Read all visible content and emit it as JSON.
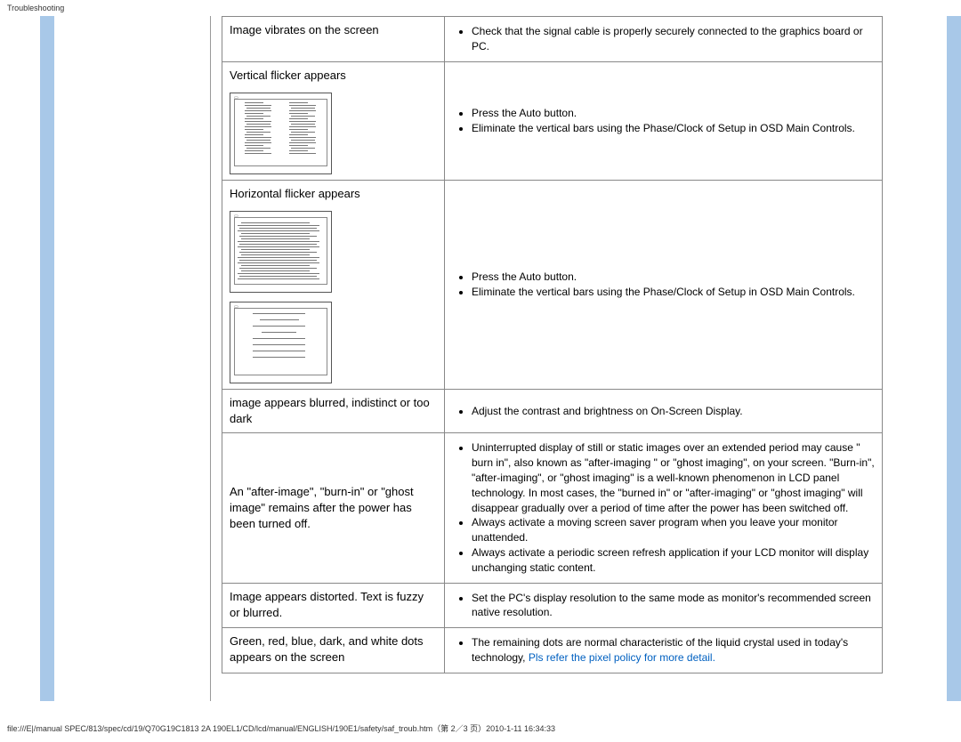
{
  "header": {
    "title": "Troubleshooting"
  },
  "rows": [
    {
      "problem": "Image vibrates on the screen",
      "solutions": [
        "Check that the signal cable is properly securely connected to the graphics board or PC."
      ],
      "diagram": null
    },
    {
      "problem": "Vertical flicker appears",
      "solutions": [
        "Press the Auto button.",
        "Eliminate the vertical bars using the Phase/Clock of Setup in OSD Main Controls."
      ],
      "diagram": "vertical"
    },
    {
      "problem": "Horizontal flicker appears",
      "solutions": [
        "Press the Auto button.",
        "Eliminate the vertical bars using the Phase/Clock of Setup in OSD Main Controls."
      ],
      "diagram": "horizontal"
    },
    {
      "problem": "image appears blurred, indistinct or too dark",
      "solutions": [
        "Adjust the contrast and brightness on On-Screen Display."
      ],
      "diagram": null
    },
    {
      "problem": "An \"after-image\", \"burn-in\" or \"ghost image\" remains after the power has been turned off.",
      "solutions": [
        "Uninterrupted display of still or static images over an extended period may cause \" burn in\", also known as \"after-imaging \" or \"ghost imaging\", on your screen. \"Burn-in\", \"after-imaging\", or \"ghost imaging\" is a well-known phenomenon in LCD panel technology. In most cases, the \"burned in\" or \"after-imaging\" or \"ghost imaging\" will disappear gradually over a period of time after the power has been switched off.",
        "Always activate a moving screen saver program when you leave your monitor unattended.",
        "Always activate a periodic screen refresh application if your LCD monitor will display unchanging static content."
      ],
      "diagram": null
    },
    {
      "problem": "Image appears distorted. Text   is fuzzy or blurred.",
      "solutions": [
        "Set the PC's display resolution to the same mode as monitor's recommended screen native resolution."
      ],
      "diagram": null
    },
    {
      "problem": "Green, red, blue, dark, and white dots appears on the screen",
      "solutions": [],
      "special_solution_prefix": "The remaining dots are normal characteristic of the liquid crystal used in today's technology, ",
      "special_solution_link": "Pls refer the pixel policy for more detail.",
      "diagram": null
    }
  ],
  "footer": {
    "text": "file:///E|/manual SPEC/813/spec/cd/19/Q70G19C1813 2A 190EL1/CD/lcd/manual/ENGLISH/190E1/safety/saf_troub.htm（第 2／3 页）2010-1-11 16:34:33"
  }
}
